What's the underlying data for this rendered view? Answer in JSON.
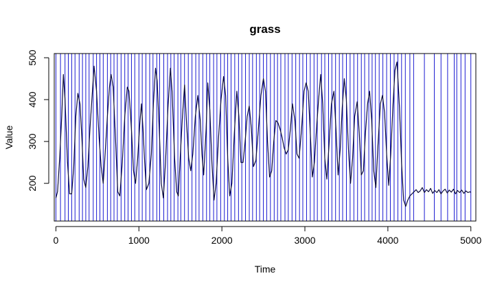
{
  "chart_data": {
    "type": "line",
    "title": "grass",
    "xlabel": "Time",
    "ylabel": "Value",
    "xlim": [
      -20,
      5060
    ],
    "ylim": [
      110,
      510
    ],
    "x_ticks": [
      0,
      1000,
      2000,
      3000,
      4000,
      5000
    ],
    "y_ticks": [
      200,
      300,
      400,
      500
    ],
    "grid": false,
    "legend": "none",
    "series": [
      {
        "color": "#0b0b3a",
        "points": [
          [
            0,
            165
          ],
          [
            20,
            180
          ],
          [
            45,
            260
          ],
          [
            70,
            360
          ],
          [
            90,
            460
          ],
          [
            110,
            400
          ],
          [
            140,
            250
          ],
          [
            165,
            175
          ],
          [
            190,
            175
          ],
          [
            215,
            240
          ],
          [
            240,
            360
          ],
          [
            265,
            415
          ],
          [
            290,
            390
          ],
          [
            315,
            300
          ],
          [
            335,
            210
          ],
          [
            360,
            190
          ],
          [
            385,
            240
          ],
          [
            410,
            330
          ],
          [
            440,
            420
          ],
          [
            460,
            480
          ],
          [
            490,
            420
          ],
          [
            520,
            310
          ],
          [
            545,
            240
          ],
          [
            570,
            200
          ],
          [
            590,
            260
          ],
          [
            620,
            360
          ],
          [
            645,
            430
          ],
          [
            665,
            460
          ],
          [
            690,
            430
          ],
          [
            720,
            300
          ],
          [
            745,
            180
          ],
          [
            770,
            170
          ],
          [
            800,
            250
          ],
          [
            830,
            360
          ],
          [
            860,
            430
          ],
          [
            880,
            420
          ],
          [
            910,
            330
          ],
          [
            935,
            230
          ],
          [
            960,
            200
          ],
          [
            985,
            260
          ],
          [
            1010,
            340
          ],
          [
            1030,
            390
          ],
          [
            1050,
            330
          ],
          [
            1070,
            250
          ],
          [
            1090,
            185
          ],
          [
            1120,
            200
          ],
          [
            1150,
            270
          ],
          [
            1175,
            390
          ],
          [
            1200,
            475
          ],
          [
            1220,
            445
          ],
          [
            1245,
            330
          ],
          [
            1270,
            200
          ],
          [
            1295,
            165
          ],
          [
            1320,
            250
          ],
          [
            1350,
            380
          ],
          [
            1380,
            475
          ],
          [
            1400,
            420
          ],
          [
            1430,
            260
          ],
          [
            1455,
            180
          ],
          [
            1475,
            170
          ],
          [
            1500,
            270
          ],
          [
            1525,
            360
          ],
          [
            1550,
            435
          ],
          [
            1575,
            340
          ],
          [
            1600,
            260
          ],
          [
            1625,
            230
          ],
          [
            1650,
            270
          ],
          [
            1680,
            360
          ],
          [
            1710,
            410
          ],
          [
            1740,
            350
          ],
          [
            1760,
            270
          ],
          [
            1780,
            220
          ],
          [
            1810,
            330
          ],
          [
            1830,
            440
          ],
          [
            1855,
            375
          ],
          [
            1880,
            250
          ],
          [
            1905,
            160
          ],
          [
            1930,
            200
          ],
          [
            1960,
            310
          ],
          [
            1990,
            400
          ],
          [
            2020,
            455
          ],
          [
            2045,
            410
          ],
          [
            2070,
            260
          ],
          [
            2095,
            170
          ],
          [
            2120,
            200
          ],
          [
            2150,
            320
          ],
          [
            2180,
            420
          ],
          [
            2205,
            360
          ],
          [
            2230,
            250
          ],
          [
            2255,
            250
          ],
          [
            2280,
            300
          ],
          [
            2305,
            360
          ],
          [
            2330,
            385
          ],
          [
            2355,
            330
          ],
          [
            2380,
            240
          ],
          [
            2410,
            255
          ],
          [
            2440,
            330
          ],
          [
            2470,
            410
          ],
          [
            2500,
            450
          ],
          [
            2525,
            420
          ],
          [
            2550,
            300
          ],
          [
            2575,
            215
          ],
          [
            2600,
            230
          ],
          [
            2625,
            300
          ],
          [
            2650,
            350
          ],
          [
            2675,
            345
          ],
          [
            2700,
            330
          ],
          [
            2725,
            310
          ],
          [
            2750,
            285
          ],
          [
            2775,
            270
          ],
          [
            2800,
            280
          ],
          [
            2825,
            330
          ],
          [
            2850,
            390
          ],
          [
            2880,
            350
          ],
          [
            2905,
            270
          ],
          [
            2930,
            260
          ],
          [
            2960,
            330
          ],
          [
            2990,
            420
          ],
          [
            3015,
            440
          ],
          [
            3040,
            420
          ],
          [
            3065,
            320
          ],
          [
            3090,
            215
          ],
          [
            3115,
            250
          ],
          [
            3140,
            330
          ],
          [
            3165,
            400
          ],
          [
            3190,
            460
          ],
          [
            3215,
            390
          ],
          [
            3240,
            260
          ],
          [
            3265,
            210
          ],
          [
            3290,
            290
          ],
          [
            3320,
            390
          ],
          [
            3350,
            420
          ],
          [
            3375,
            330
          ],
          [
            3400,
            220
          ],
          [
            3425,
            280
          ],
          [
            3450,
            380
          ],
          [
            3475,
            450
          ],
          [
            3500,
            400
          ],
          [
            3525,
            280
          ],
          [
            3550,
            200
          ],
          [
            3575,
            260
          ],
          [
            3600,
            360
          ],
          [
            3630,
            395
          ],
          [
            3655,
            320
          ],
          [
            3680,
            220
          ],
          [
            3705,
            230
          ],
          [
            3730,
            320
          ],
          [
            3755,
            390
          ],
          [
            3780,
            420
          ],
          [
            3805,
            350
          ],
          [
            3830,
            230
          ],
          [
            3855,
            190
          ],
          [
            3880,
            290
          ],
          [
            3910,
            390
          ],
          [
            3935,
            410
          ],
          [
            3960,
            370
          ],
          [
            3985,
            270
          ],
          [
            4010,
            195
          ],
          [
            4035,
            270
          ],
          [
            4060,
            380
          ],
          [
            4085,
            470
          ],
          [
            4110,
            490
          ],
          [
            4140,
            380
          ],
          [
            4165,
            250
          ],
          [
            4190,
            160
          ],
          [
            4215,
            145
          ],
          [
            4240,
            160
          ],
          [
            4265,
            170
          ],
          [
            4290,
            175
          ],
          [
            4315,
            180
          ],
          [
            4340,
            185
          ],
          [
            4365,
            178
          ],
          [
            4390,
            182
          ],
          [
            4415,
            190
          ],
          [
            4440,
            178
          ],
          [
            4465,
            185
          ],
          [
            4490,
            180
          ],
          [
            4515,
            188
          ],
          [
            4540,
            176
          ],
          [
            4565,
            183
          ],
          [
            4590,
            178
          ],
          [
            4615,
            185
          ],
          [
            4640,
            175
          ],
          [
            4665,
            182
          ],
          [
            4690,
            186
          ],
          [
            4715,
            177
          ],
          [
            4740,
            184
          ],
          [
            4765,
            179
          ],
          [
            4790,
            186
          ],
          [
            4815,
            175
          ],
          [
            4840,
            183
          ],
          [
            4865,
            178
          ],
          [
            4890,
            184
          ],
          [
            4915,
            176
          ],
          [
            4940,
            182
          ],
          [
            4965,
            178
          ],
          [
            4990,
            180
          ],
          [
            5000,
            178
          ]
        ]
      }
    ],
    "vertical_markers": {
      "color": "#0000cc",
      "x": [
        0,
        55,
        110,
        150,
        190,
        230,
        280,
        320,
        360,
        400,
        450,
        490,
        530,
        570,
        620,
        660,
        700,
        740,
        785,
        830,
        870,
        910,
        950,
        1000,
        1040,
        1085,
        1130,
        1170,
        1215,
        1250,
        1300,
        1345,
        1385,
        1425,
        1470,
        1505,
        1550,
        1595,
        1640,
        1685,
        1725,
        1770,
        1815,
        1855,
        1900,
        1940,
        1985,
        2030,
        2070,
        2110,
        2155,
        2200,
        2240,
        2285,
        2330,
        2370,
        2415,
        2455,
        2500,
        2540,
        2585,
        2630,
        2670,
        2710,
        2760,
        2800,
        2845,
        2890,
        2935,
        2975,
        3020,
        3065,
        3110,
        3150,
        3200,
        3240,
        3285,
        3325,
        3370,
        3415,
        3455,
        3500,
        3545,
        3590,
        3635,
        3680,
        3720,
        3770,
        3810,
        3850,
        3895,
        3940,
        3985,
        4030,
        4075,
        4120,
        4165,
        4210,
        4265,
        4310,
        4440,
        4560,
        4640,
        4720,
        4800,
        4830,
        4880,
        4930,
        5000
      ]
    }
  }
}
